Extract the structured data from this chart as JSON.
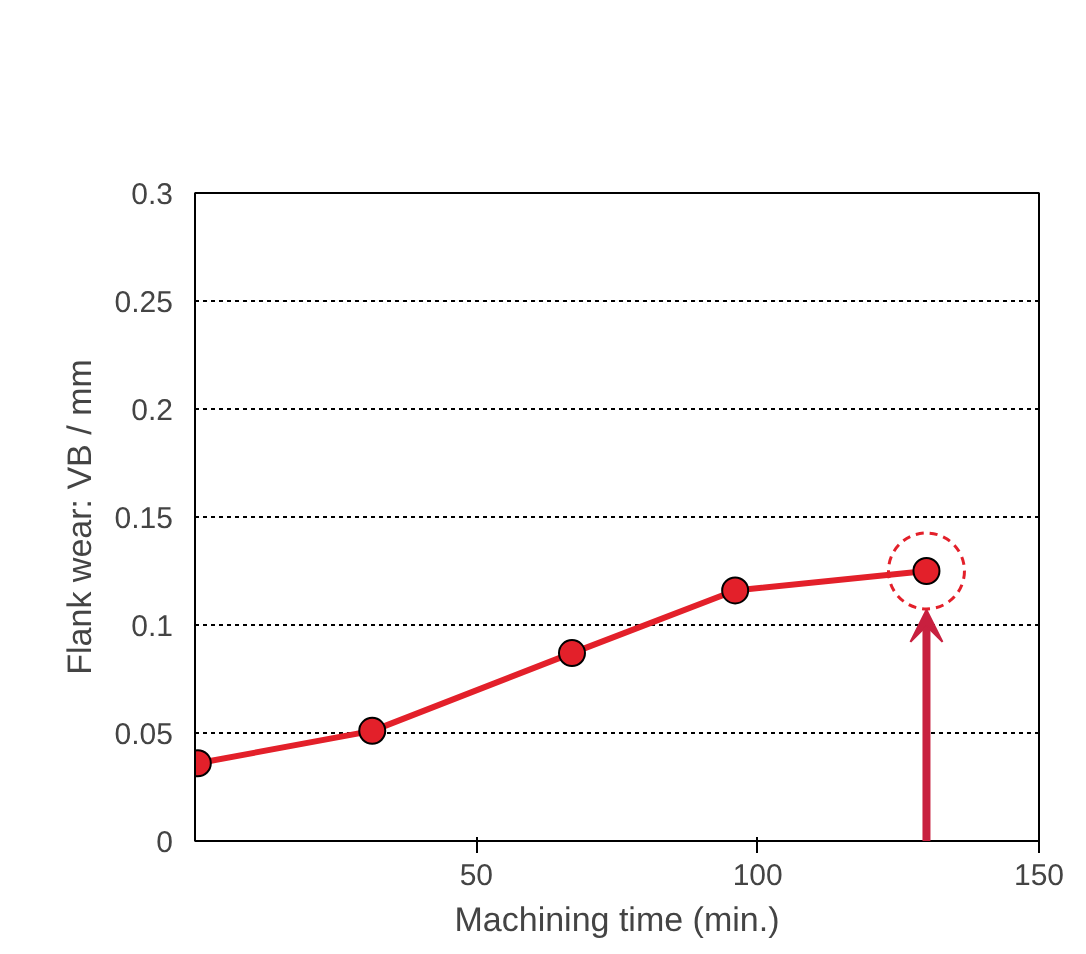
{
  "chart_data": {
    "type": "line",
    "xlabel": "Machining time (min.)",
    "ylabel": "Flank wear: VB / mm",
    "x": [
      0.5,
      31.5,
      67,
      96,
      130
    ],
    "series": [
      {
        "color": "#e3202a",
        "values": [
          0.036,
          0.051,
          0.087,
          0.116,
          0.125
        ]
      }
    ],
    "xlim": [
      0,
      150
    ],
    "xticks": [
      50,
      100,
      150
    ],
    "ylim": [
      0,
      0.3
    ],
    "yticks": [
      0,
      0.05,
      0.1,
      0.15,
      0.2,
      0.25,
      0.3
    ],
    "grid": "y",
    "marker": "circle",
    "line_style": "solid"
  }
}
